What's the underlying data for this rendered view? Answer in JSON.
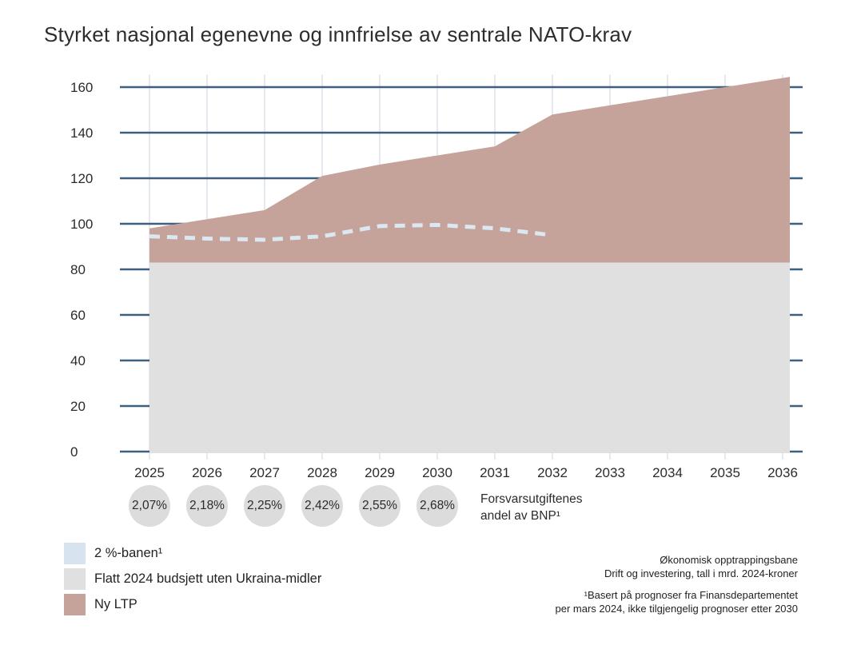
{
  "title": "Styrket nasjonal egenevne og innfrielse av sentrale NATO-krav",
  "chart_data": {
    "type": "area",
    "title": "Styrket nasjonal egenevne og innfrielse av sentrale NATO-krav",
    "x": [
      2025,
      2026,
      2027,
      2028,
      2029,
      2030,
      2031,
      2032,
      2033,
      2034,
      2035,
      2036
    ],
    "ylim": [
      0,
      160
    ],
    "yticks": [
      0,
      20,
      40,
      60,
      80,
      100,
      120,
      140,
      160
    ],
    "grid": "horizontal dark-blue lines, light vertical year lines",
    "unit": "mrd. 2024-kroner",
    "series": [
      {
        "name": "Flatt 2024 budsjett uten Ukraina-midler",
        "render": "area",
        "color": "#e0e0e0",
        "values": [
          83,
          83,
          83,
          83,
          83,
          83,
          83,
          83,
          83,
          83,
          83,
          83
        ]
      },
      {
        "name": "Ny LTP",
        "render": "stacked-area-top",
        "color": "#c6a39a",
        "values_total": [
          98,
          102,
          106,
          121,
          126,
          130,
          134,
          148,
          152,
          156,
          160,
          164
        ]
      },
      {
        "name": "2 %-banen¹",
        "render": "dashed-line",
        "color": "#dbe7f1",
        "values": [
          94.5,
          93.5,
          93,
          94.5,
          99,
          99.5,
          98,
          95,
          null,
          null,
          null,
          null
        ]
      }
    ],
    "bnp_share": {
      "label_line1": "Forsvarsutgiftenes",
      "label_line2": "andel av BNP¹",
      "circle_color": "#dcdcdc",
      "years": [
        2025,
        2026,
        2027,
        2028,
        2029,
        2030
      ],
      "values": [
        "2,07%",
        "2,18%",
        "2,25%",
        "2,42%",
        "2,55%",
        "2,68%"
      ]
    }
  },
  "legend": {
    "items": [
      {
        "label": "2 %-banen¹",
        "color": "#d7e4ef"
      },
      {
        "label": "Flatt 2024 budsjett uten Ukraina-midler",
        "color": "#e0e0e0"
      },
      {
        "label": "Ny LTP",
        "color": "#c6a39a"
      }
    ]
  },
  "notes": {
    "source_line1": "Økonomisk opptrappingsbane",
    "source_line2": "Drift og investering, tall i mrd. 2024-kroner",
    "footnote_line1": "¹Basert på prognoser fra Finansdepartementet",
    "footnote_line2": "per mars 2024, ikke tilgjengelig prognoser etter 2030"
  },
  "colors": {
    "grid_dark": "#3d6080",
    "grid_light": "#dfe5ec",
    "background": "#ffffff",
    "text": "#2d2d2d"
  }
}
